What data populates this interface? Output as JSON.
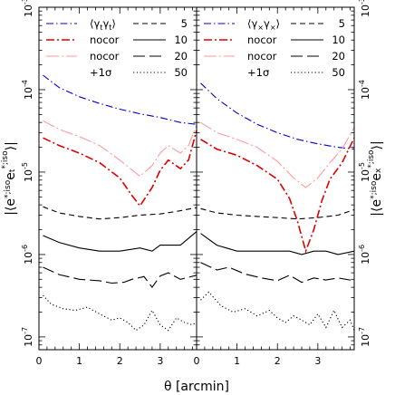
{
  "chart_data": [
    {
      "type": "line",
      "y_scale": "log",
      "xlim": [
        0,
        3.9
      ],
      "ylim": [
        7e-08,
        0.001
      ],
      "xticks": [
        0,
        1,
        2,
        3
      ],
      "xtick_labels": [
        "0",
        "1",
        "2",
        "3"
      ],
      "yticks": [
        1e-07,
        1e-06,
        1e-05,
        0.0001,
        0.001
      ],
      "ytick_labels": [
        "10",
        "10",
        "10",
        "10",
        "10"
      ],
      "ytick_exponents": [
        "-7",
        "-6",
        "-5",
        "-4",
        "-3"
      ],
      "xlabel": "θ [arcmin]",
      "ylabel_parts": {
        "open": "|⟨e",
        "sup1": "*;iso",
        "mid": "e",
        "sup2": "*;iso",
        "sub": "t",
        "close": "⟩|"
      },
      "legend": {
        "placement": "top",
        "left_column": [
          "⟨γ",
          "nocor",
          "nocor",
          "+1σ"
        ],
        "right_column": [
          "5",
          "10",
          "20",
          "50"
        ]
      },
      "series": [
        {
          "label_ref": "shear signal",
          "color": "#0000cc",
          "dash": "dot-dash",
          "x": [
            0.1,
            0.5,
            1.0,
            1.5,
            2.0,
            2.5,
            3.0,
            3.5,
            3.9
          ],
          "y": [
            0.00015,
            0.000106,
            8.2e-05,
            6.8e-05,
            5.8e-05,
            5.1e-05,
            4.6e-05,
            4e-05,
            3.8e-05
          ]
        },
        {
          "label_ref": "nocor +1σ",
          "color": "#ff9999",
          "dash": "long-dash-dot",
          "x": [
            0.1,
            0.5,
            1.0,
            1.5,
            2.0,
            2.5,
            2.8,
            3.0,
            3.2,
            3.5,
            3.7,
            3.9
          ],
          "y": [
            4.2e-05,
            3.3e-05,
            2.7e-05,
            2.1e-05,
            1.4e-05,
            8.9e-06,
            1.2e-05,
            1.7e-05,
            2.1e-05,
            1.7e-05,
            2.1e-05,
            3.7e-05
          ]
        },
        {
          "label_ref": "nocor",
          "color": "#dd0000",
          "dash": "dash-dot",
          "x": [
            0.1,
            0.5,
            1.0,
            1.5,
            2.0,
            2.3,
            2.5,
            2.8,
            3.0,
            3.2,
            3.5,
            3.7,
            3.9
          ],
          "y": [
            2.6e-05,
            2.1e-05,
            1.7e-05,
            1.3e-05,
            8.5e-06,
            5.2e-06,
            3.9e-06,
            6.5e-06,
            1.05e-05,
            1.4e-05,
            1.1e-05,
            1.4e-05,
            3.2e-05
          ]
        },
        {
          "label_ref": "5",
          "color": "#000000",
          "dash": "dash",
          "x": [
            0.1,
            0.5,
            1.0,
            1.5,
            2.0,
            2.5,
            3.0,
            3.5,
            3.9
          ],
          "y": [
            3.8e-06,
            3.2e-06,
            2.9e-06,
            2.7e-06,
            2.8e-06,
            3e-06,
            3.1e-06,
            3.4e-06,
            3.7e-06
          ]
        },
        {
          "label_ref": "10",
          "color": "#000000",
          "dash": "solid",
          "x": [
            0.1,
            0.5,
            1.0,
            1.5,
            2.0,
            2.5,
            2.8,
            3.0,
            3.5,
            3.9
          ],
          "y": [
            1.7e-06,
            1.4e-06,
            1.2e-06,
            1.1e-06,
            1.1e-06,
            1.2e-06,
            1.1e-06,
            1.3e-06,
            1.3e-06,
            1.9e-06
          ]
        },
        {
          "label_ref": "20",
          "color": "#000000",
          "dash": "long-dash",
          "x": [
            0.1,
            0.5,
            1.0,
            1.5,
            1.8,
            2.1,
            2.3,
            2.6,
            2.8,
            3.0,
            3.2,
            3.5,
            3.9
          ],
          "y": [
            7e-07,
            5.7e-07,
            5e-07,
            4.8e-07,
            4.5e-07,
            4.6e-07,
            5e-07,
            5.4e-07,
            4e-07,
            5.5e-07,
            6e-07,
            5e-07,
            5.6e-07
          ]
        },
        {
          "label_ref": "50",
          "color": "#000000",
          "dash": "dot",
          "x": [
            0.1,
            0.3,
            0.6,
            0.9,
            1.2,
            1.5,
            1.8,
            2.0,
            2.2,
            2.4,
            2.6,
            2.8,
            3.0,
            3.2,
            3.4,
            3.6,
            3.8,
            3.9
          ],
          "y": [
            3.2e-07,
            2.5e-07,
            2.2e-07,
            2.1e-07,
            2.3e-07,
            1.9e-07,
            1.6e-07,
            1.7e-07,
            1.5e-07,
            1.2e-07,
            1.4e-07,
            2.1e-07,
            1.4e-07,
            1.2e-07,
            1.7e-07,
            1.5e-07,
            1.4e-07,
            1.5e-07
          ]
        }
      ]
    },
    {
      "type": "line",
      "y_scale": "log",
      "xlim": [
        0,
        3.9
      ],
      "ylim": [
        7e-08,
        0.001
      ],
      "xticks": [
        0,
        1,
        2,
        3
      ],
      "xtick_labels": [
        "0",
        "1",
        "2",
        "3"
      ],
      "yticks": [
        1e-07,
        1e-06,
        1e-05,
        0.0001,
        0.001
      ],
      "ytick_labels": [
        "10",
        "10",
        "10",
        "10",
        "10"
      ],
      "ytick_exponents": [
        "-7",
        "-6",
        "-5",
        "-4",
        "-3"
      ],
      "xlabel": "",
      "ylabel_parts": {
        "open": "|⟨e",
        "sup1": "*;iso",
        "mid": "e",
        "sup2": "*;iso",
        "sub": "x",
        "close": "⟩|"
      },
      "legend": {
        "placement": "top",
        "left_column": [
          "⟨γ",
          "nocor",
          "nocor",
          "+1σ"
        ],
        "right_column": [
          "5",
          "10",
          "20",
          "50"
        ]
      },
      "series": [
        {
          "label_ref": "shear signal",
          "color": "#0000cc",
          "dash": "dot-dash",
          "x": [
            0.1,
            0.5,
            1.0,
            1.5,
            2.0,
            2.5,
            3.0,
            3.5,
            3.9
          ],
          "y": [
            0.00012,
            7.8e-05,
            5.2e-05,
            3.8e-05,
            3e-05,
            2.5e-05,
            2.2e-05,
            2e-05,
            1.9e-05
          ]
        },
        {
          "label_ref": "nocor +1σ",
          "color": "#ff9999",
          "dash": "long-dash-dot",
          "x": [
            0.1,
            0.5,
            1.0,
            1.5,
            2.0,
            2.4,
            2.7,
            3.0,
            3.3,
            3.6,
            3.9
          ],
          "y": [
            4e-05,
            3e-05,
            2.5e-05,
            2e-05,
            1.35e-05,
            8.5e-06,
            6.5e-06,
            8.5e-06,
            1.3e-05,
            1.9e-05,
            3.5e-05
          ]
        },
        {
          "label_ref": "nocor",
          "color": "#dd0000",
          "dash": "dash-dot",
          "x": [
            0.1,
            0.5,
            1.0,
            1.5,
            2.0,
            2.3,
            2.5,
            2.7,
            2.9,
            3.1,
            3.3,
            3.6,
            3.9
          ],
          "y": [
            2.5e-05,
            1.9e-05,
            1.6e-05,
            1.2e-05,
            8.2e-06,
            4.8e-06,
            2.5e-06,
            1.1e-06,
            2e-06,
            4.5e-06,
            8.2e-06,
            1.3e-05,
            2.6e-05
          ]
        },
        {
          "label_ref": "5",
          "color": "#000000",
          "dash": "dash",
          "x": [
            0.1,
            0.5,
            1.0,
            1.5,
            2.0,
            2.5,
            3.0,
            3.5,
            3.9
          ],
          "y": [
            3.6e-06,
            3.2e-06,
            3e-06,
            2.9e-06,
            2.8e-06,
            2.7e-06,
            2.8e-06,
            3e-06,
            3.5e-06
          ]
        },
        {
          "label_ref": "10",
          "color": "#000000",
          "dash": "solid",
          "x": [
            0.1,
            0.5,
            1.0,
            1.5,
            2.0,
            2.3,
            2.6,
            2.9,
            3.2,
            3.5,
            3.9
          ],
          "y": [
            1.8e-06,
            1.3e-06,
            1.1e-06,
            1.1e-06,
            1.1e-06,
            1.1e-06,
            1e-06,
            1.1e-06,
            1.1e-06,
            1e-06,
            1.1e-06
          ]
        },
        {
          "label_ref": "20",
          "color": "#000000",
          "dash": "long-dash",
          "x": [
            0.1,
            0.5,
            0.8,
            1.2,
            1.6,
            2.0,
            2.3,
            2.6,
            2.9,
            3.2,
            3.5,
            3.9
          ],
          "y": [
            8e-07,
            6.5e-07,
            7e-07,
            5.8e-07,
            5.2e-07,
            4.8e-07,
            5.6e-07,
            4.6e-07,
            5.2e-07,
            4.9e-07,
            5.2e-07,
            4.8e-07
          ]
        },
        {
          "label_ref": "50",
          "color": "#000000",
          "dash": "dot",
          "x": [
            0.1,
            0.3,
            0.6,
            0.9,
            1.2,
            1.5,
            1.8,
            2.0,
            2.2,
            2.4,
            2.6,
            2.8,
            3.0,
            3.2,
            3.4,
            3.6,
            3.8,
            3.9
          ],
          "y": [
            2.8e-07,
            3.5e-07,
            2.4e-07,
            2e-07,
            2.2e-07,
            1.8e-07,
            2.1e-07,
            1.7e-07,
            1.5e-07,
            1.8e-07,
            1.6e-07,
            1.4e-07,
            1.9e-07,
            1.3e-07,
            2.1e-07,
            1.3e-07,
            1.6e-07,
            1.2e-07
          ]
        }
      ]
    }
  ]
}
